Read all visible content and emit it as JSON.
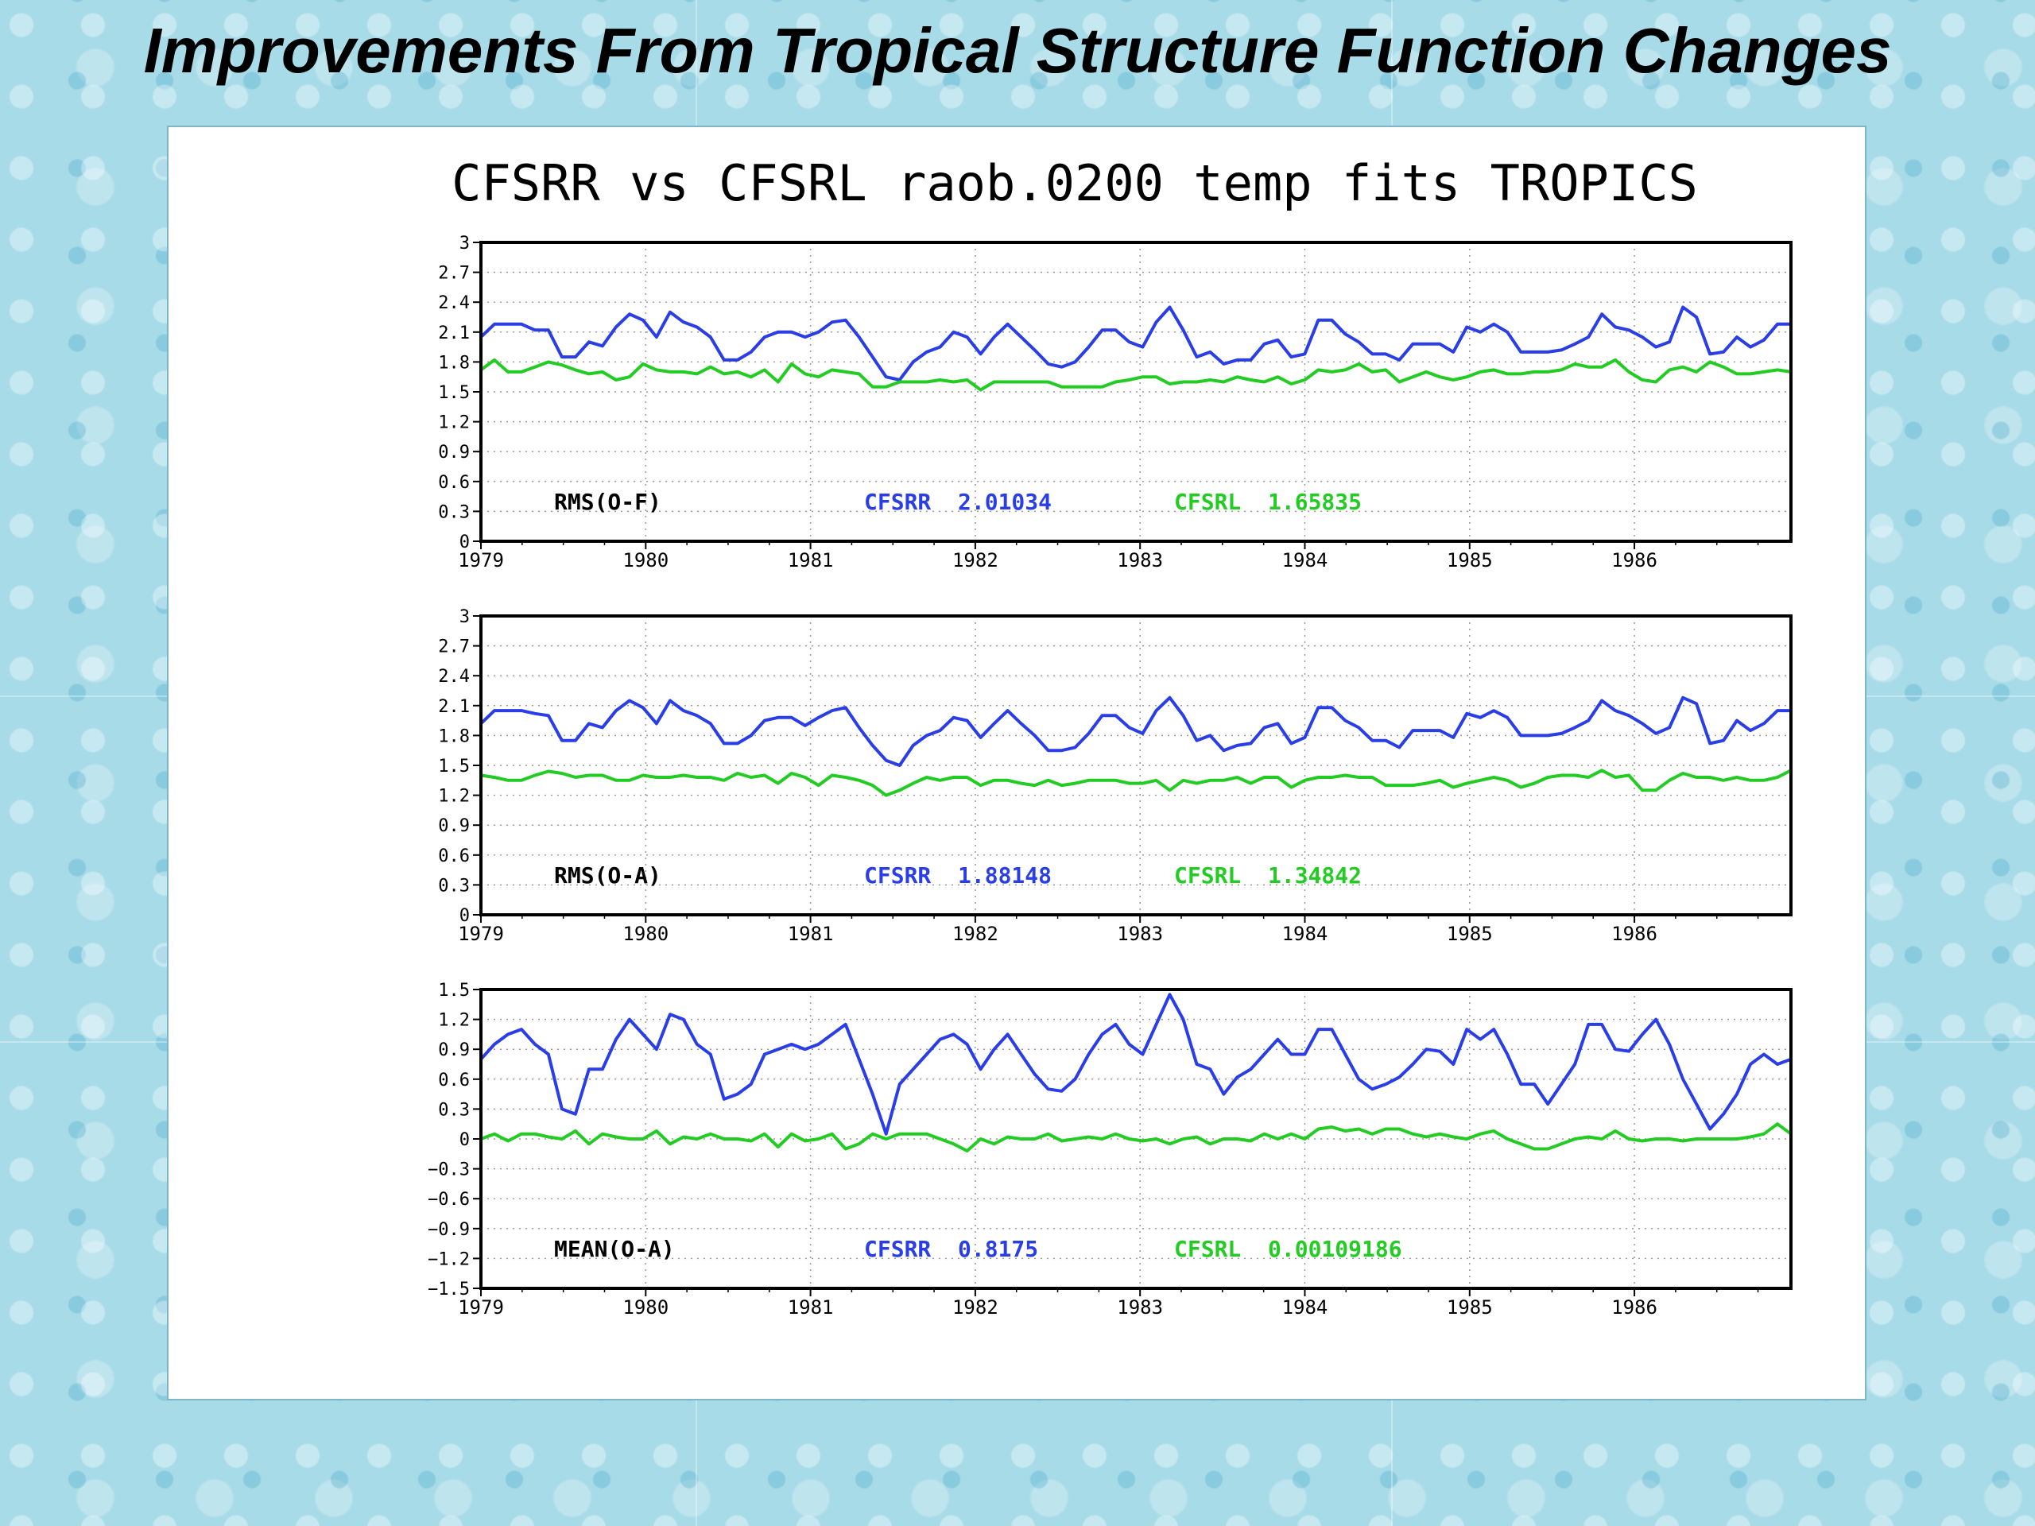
{
  "slide": {
    "title": "Improvements From Tropical Structure Function Changes"
  },
  "colors": {
    "cfsrr": "#2a3ee8",
    "cfsrl": "#22cc22",
    "stat": "#000000"
  },
  "chart_data": [
    {
      "type": "line",
      "title": "CFSRR vs CFSRL  raob.0200 temp fits TROPICS",
      "stat_label": "RMS(O-F)",
      "xlim": [
        1979.0,
        1986.95
      ],
      "x_ticks": [
        "1979",
        "1980",
        "1981",
        "1982",
        "1983",
        "1984",
        "1985",
        "1986"
      ],
      "ylim": [
        0,
        3
      ],
      "y_ticks": [
        "0",
        "0.3",
        "0.6",
        "0.9",
        "1.2",
        "1.5",
        "1.8",
        "2.1",
        "2.4",
        "2.7",
        "3"
      ],
      "grid": true,
      "series": [
        {
          "name": "CFSRR",
          "summary": "2.01034",
          "color": "#2a3ee8",
          "values": [
            2.05,
            2.18,
            2.18,
            2.18,
            2.12,
            2.12,
            1.85,
            1.85,
            2.0,
            1.96,
            2.15,
            2.28,
            2.22,
            2.05,
            2.3,
            2.2,
            2.15,
            2.05,
            1.82,
            1.82,
            1.9,
            2.05,
            2.1,
            2.1,
            2.05,
            2.1,
            2.2,
            2.22,
            2.05,
            1.85,
            1.65,
            1.62,
            1.8,
            1.9,
            1.95,
            2.1,
            2.05,
            1.88,
            2.05,
            2.18,
            2.05,
            1.92,
            1.78,
            1.75,
            1.8,
            1.95,
            2.12,
            2.12,
            2.0,
            1.95,
            2.2,
            2.35,
            2.12,
            1.85,
            1.9,
            1.78,
            1.82,
            1.82,
            1.98,
            2.02,
            1.85,
            1.88,
            2.22,
            2.22,
            2.08,
            2.0,
            1.88,
            1.88,
            1.82,
            1.98,
            1.98,
            1.98,
            1.9,
            2.15,
            2.1,
            2.18,
            2.1,
            1.9,
            1.9,
            1.9,
            1.92,
            1.98,
            2.05,
            2.28,
            2.15,
            2.12,
            2.05,
            1.95,
            2.0,
            2.35,
            2.25,
            1.88,
            1.9,
            2.05,
            1.95,
            2.02,
            2.18,
            2.18
          ]
        },
        {
          "name": "CFSRL",
          "summary": "1.65835",
          "color": "#22cc22",
          "values": [
            1.72,
            1.82,
            1.7,
            1.7,
            1.75,
            1.8,
            1.77,
            1.72,
            1.68,
            1.7,
            1.62,
            1.65,
            1.78,
            1.72,
            1.7,
            1.7,
            1.68,
            1.75,
            1.68,
            1.7,
            1.65,
            1.72,
            1.6,
            1.78,
            1.68,
            1.65,
            1.72,
            1.7,
            1.68,
            1.55,
            1.55,
            1.6,
            1.6,
            1.6,
            1.62,
            1.6,
            1.62,
            1.52,
            1.6,
            1.6,
            1.6,
            1.6,
            1.6,
            1.55,
            1.55,
            1.55,
            1.55,
            1.6,
            1.62,
            1.65,
            1.65,
            1.58,
            1.6,
            1.6,
            1.62,
            1.6,
            1.65,
            1.62,
            1.6,
            1.65,
            1.58,
            1.62,
            1.72,
            1.7,
            1.72,
            1.78,
            1.7,
            1.72,
            1.6,
            1.65,
            1.7,
            1.65,
            1.62,
            1.65,
            1.7,
            1.72,
            1.68,
            1.68,
            1.7,
            1.7,
            1.72,
            1.78,
            1.75,
            1.75,
            1.82,
            1.7,
            1.62,
            1.6,
            1.72,
            1.75,
            1.7,
            1.8,
            1.75,
            1.68,
            1.68,
            1.7,
            1.72,
            1.7
          ]
        }
      ]
    },
    {
      "type": "line",
      "stat_label": "RMS(O-A)",
      "xlim": [
        1979.0,
        1986.95
      ],
      "x_ticks": [
        "1979",
        "1980",
        "1981",
        "1982",
        "1983",
        "1984",
        "1985",
        "1986"
      ],
      "ylim": [
        0,
        3
      ],
      "y_ticks": [
        "0",
        "0.3",
        "0.6",
        "0.9",
        "1.2",
        "1.5",
        "1.8",
        "2.1",
        "2.4",
        "2.7",
        "3"
      ],
      "grid": true,
      "series": [
        {
          "name": "CFSRR",
          "summary": "1.88148",
          "color": "#2a3ee8",
          "values": [
            1.92,
            2.05,
            2.05,
            2.05,
            2.02,
            2.0,
            1.75,
            1.75,
            1.92,
            1.88,
            2.05,
            2.15,
            2.08,
            1.92,
            2.15,
            2.05,
            2.0,
            1.92,
            1.72,
            1.72,
            1.8,
            1.95,
            1.98,
            1.98,
            1.9,
            1.98,
            2.05,
            2.08,
            1.88,
            1.7,
            1.55,
            1.5,
            1.7,
            1.8,
            1.85,
            1.98,
            1.95,
            1.78,
            1.92,
            2.05,
            1.92,
            1.8,
            1.65,
            1.65,
            1.68,
            1.82,
            2.0,
            2.0,
            1.88,
            1.82,
            2.05,
            2.18,
            2.0,
            1.75,
            1.8,
            1.65,
            1.7,
            1.72,
            1.88,
            1.92,
            1.72,
            1.78,
            2.08,
            2.08,
            1.95,
            1.88,
            1.75,
            1.75,
            1.68,
            1.85,
            1.85,
            1.85,
            1.78,
            2.02,
            1.98,
            2.05,
            1.98,
            1.8,
            1.8,
            1.8,
            1.82,
            1.88,
            1.95,
            2.15,
            2.05,
            2.0,
            1.92,
            1.82,
            1.88,
            2.18,
            2.12,
            1.72,
            1.75,
            1.95,
            1.85,
            1.92,
            2.05,
            2.05
          ]
        },
        {
          "name": "CFSRL",
          "summary": "1.34842",
          "color": "#22cc22",
          "values": [
            1.4,
            1.38,
            1.35,
            1.35,
            1.4,
            1.44,
            1.42,
            1.38,
            1.4,
            1.4,
            1.35,
            1.35,
            1.4,
            1.38,
            1.38,
            1.4,
            1.38,
            1.38,
            1.35,
            1.42,
            1.38,
            1.4,
            1.32,
            1.42,
            1.38,
            1.3,
            1.4,
            1.38,
            1.35,
            1.3,
            1.2,
            1.25,
            1.32,
            1.38,
            1.35,
            1.38,
            1.38,
            1.3,
            1.35,
            1.35,
            1.32,
            1.3,
            1.35,
            1.3,
            1.32,
            1.35,
            1.35,
            1.35,
            1.32,
            1.32,
            1.35,
            1.25,
            1.35,
            1.32,
            1.35,
            1.35,
            1.38,
            1.32,
            1.38,
            1.38,
            1.28,
            1.35,
            1.38,
            1.38,
            1.4,
            1.38,
            1.38,
            1.3,
            1.3,
            1.3,
            1.32,
            1.35,
            1.28,
            1.32,
            1.35,
            1.38,
            1.35,
            1.28,
            1.32,
            1.38,
            1.4,
            1.4,
            1.38,
            1.45,
            1.38,
            1.4,
            1.25,
            1.25,
            1.35,
            1.42,
            1.38,
            1.38,
            1.35,
            1.38,
            1.35,
            1.35,
            1.38,
            1.45
          ]
        }
      ]
    },
    {
      "type": "line",
      "stat_label": "MEAN(O-A)",
      "xlim": [
        1979.0,
        1986.95
      ],
      "x_ticks": [
        "1979",
        "1980",
        "1981",
        "1982",
        "1983",
        "1984",
        "1985",
        "1986"
      ],
      "ylim": [
        -1.5,
        1.5
      ],
      "y_ticks": [
        "−1.5",
        "−1.2",
        "−0.9",
        "−0.6",
        "−0.3",
        "0",
        "0.3",
        "0.6",
        "0.9",
        "1.2",
        "1.5"
      ],
      "grid": true,
      "series": [
        {
          "name": "CFSRR",
          "summary": "0.8175",
          "color": "#2a3ee8",
          "values": [
            0.8,
            0.95,
            1.05,
            1.1,
            0.95,
            0.85,
            0.3,
            0.25,
            0.7,
            0.7,
            1.0,
            1.2,
            1.05,
            0.9,
            1.25,
            1.2,
            0.95,
            0.85,
            0.4,
            0.45,
            0.55,
            0.85,
            0.9,
            0.95,
            0.9,
            0.95,
            1.05,
            1.15,
            0.8,
            0.45,
            0.05,
            0.55,
            0.7,
            0.85,
            1.0,
            1.05,
            0.95,
            0.7,
            0.9,
            1.05,
            0.85,
            0.65,
            0.5,
            0.48,
            0.6,
            0.85,
            1.05,
            1.15,
            0.95,
            0.85,
            1.15,
            1.45,
            1.2,
            0.75,
            0.7,
            0.45,
            0.62,
            0.7,
            0.85,
            1.0,
            0.85,
            0.85,
            1.1,
            1.1,
            0.85,
            0.6,
            0.5,
            0.55,
            0.62,
            0.75,
            0.9,
            0.88,
            0.75,
            1.1,
            1.0,
            1.1,
            0.85,
            0.55,
            0.55,
            0.35,
            0.55,
            0.75,
            1.15,
            1.15,
            0.9,
            0.88,
            1.05,
            1.2,
            0.95,
            0.6,
            0.35,
            0.1,
            0.25,
            0.45,
            0.75,
            0.85,
            0.75,
            0.8
          ]
        },
        {
          "name": "CFSRL",
          "summary": "0.00109186",
          "color": "#22cc22",
          "values": [
            0.0,
            0.05,
            -0.02,
            0.05,
            0.05,
            0.02,
            0.0,
            0.08,
            -0.05,
            0.05,
            0.02,
            0.0,
            0.0,
            0.08,
            -0.05,
            0.02,
            0.0,
            0.05,
            0.0,
            0.0,
            -0.02,
            0.05,
            -0.08,
            0.05,
            -0.02,
            0.0,
            0.05,
            -0.1,
            -0.05,
            0.05,
            0.0,
            0.05,
            0.05,
            0.05,
            0.0,
            -0.05,
            -0.12,
            0.0,
            -0.05,
            0.02,
            0.0,
            0.0,
            0.05,
            -0.02,
            0.0,
            0.02,
            0.0,
            0.05,
            0.0,
            -0.02,
            0.0,
            -0.05,
            0.0,
            0.02,
            -0.05,
            0.0,
            0.0,
            -0.02,
            0.05,
            0.0,
            0.05,
            0.0,
            0.1,
            0.12,
            0.08,
            0.1,
            0.05,
            0.1,
            0.1,
            0.05,
            0.02,
            0.05,
            0.02,
            0.0,
            0.05,
            0.08,
            0.0,
            -0.05,
            -0.1,
            -0.1,
            -0.05,
            0.0,
            0.02,
            0.0,
            0.08,
            0.0,
            -0.02,
            0.0,
            0.0,
            -0.02,
            0.0,
            0.0,
            0.0,
            0.0,
            0.02,
            0.05,
            0.15,
            0.05
          ]
        }
      ]
    }
  ]
}
